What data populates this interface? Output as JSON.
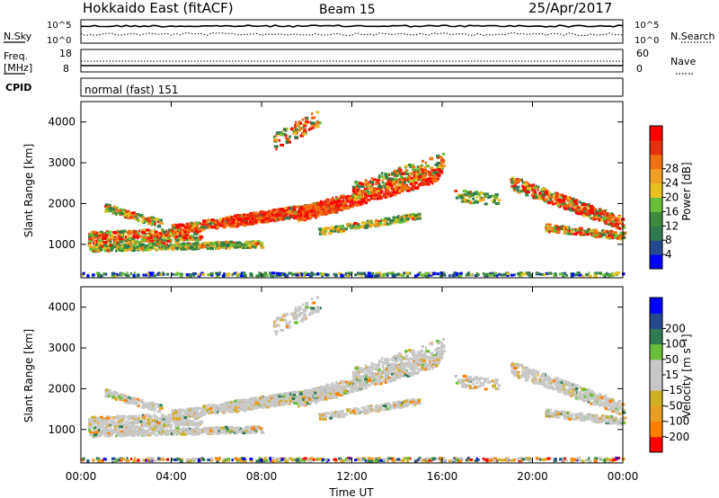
{
  "header": {
    "title": "Hokkaido East (fitACF)",
    "beam": "Beam 15",
    "date": "25/Apr/2017"
  },
  "strips": {
    "nsky": {
      "label": "N.Sky",
      "tick_hi": "10^5",
      "tick_lo": "10^0"
    },
    "nsearch": {
      "label": "N.Search",
      "tick_hi": "10^5",
      "tick_lo": "10^0"
    },
    "freq": {
      "label_line1": "Freq.",
      "label_line2": "[MHz]",
      "tick_hi": "18",
      "tick_lo": "8"
    },
    "nave": {
      "label": "Nave",
      "tick_hi": "60",
      "tick_lo": "0"
    },
    "cpid": {
      "label": "CPID",
      "value": "normal (fast) 151"
    }
  },
  "colors": {
    "power": [
      "#0000ff",
      "#234a8f",
      "#2e7a52",
      "#3c8a3c",
      "#6abf3a",
      "#e8c21c",
      "#f0a020",
      "#f07010",
      "#e83010",
      "#ff0000"
    ],
    "velocity": [
      "#ff0000",
      "#ff7f00",
      "#e8a020",
      "#d0b020",
      "#c8c8c8",
      "#c8c8c8",
      "#6abf3a",
      "#2e7a52",
      "#234a8f",
      "#0000ff"
    ],
    "noise": "#2d6b52"
  },
  "chart_data": [
    {
      "type": "heatmap",
      "name": "power",
      "ylabel": "Slant Range [km]",
      "ylim": [
        180,
        4500
      ],
      "yticks": [
        "1000",
        "2000",
        "3000",
        "4000"
      ],
      "xlabel": "",
      "xlim_hours": [
        0,
        24
      ],
      "colorbar": {
        "label": "Power [dB]",
        "range": [
          0,
          32
        ],
        "ticks": [
          "4",
          "8",
          "12",
          "16",
          "20",
          "24",
          "28"
        ]
      }
    },
    {
      "type": "heatmap",
      "name": "velocity",
      "ylabel": "Slant Range [km]",
      "ylim": [
        180,
        4500
      ],
      "yticks": [
        "1000",
        "2000",
        "3000",
        "4000"
      ],
      "xlabel": "Time UT",
      "xticks": [
        "00:00",
        "04:00",
        "08:00",
        "12:00",
        "16:00",
        "20:00",
        "00:00"
      ],
      "colorbar": {
        "label": "Velocity [m s⁻¹]",
        "ticks": [
          "200",
          "100",
          "50",
          "15",
          "-15",
          "-50",
          "-100",
          "-200"
        ]
      }
    }
  ]
}
